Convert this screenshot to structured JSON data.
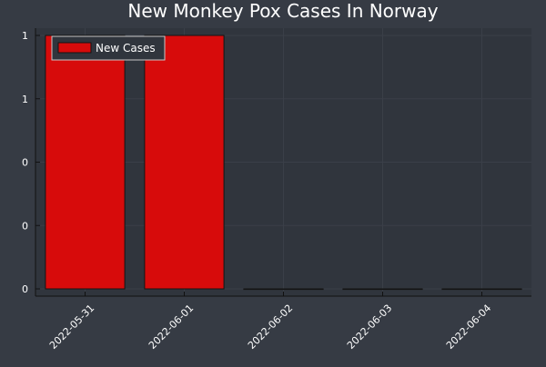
{
  "colors": {
    "background": "#363b44",
    "plot_area": "#30353d",
    "bar_fill": "#d70b0b",
    "bar_stroke": "#141414",
    "axis": "#111111",
    "text": "#ffffff",
    "grid": "#3a3f48",
    "legend_bg": "#30353d",
    "legend_border": "#c8c8c8"
  },
  "chart_data": {
    "type": "bar",
    "title": "New Monkey Pox Cases In Norway",
    "xlabel": "",
    "ylabel": "",
    "categories": [
      "2022-05-31",
      "2022-06-01",
      "2022-06-02",
      "2022-06-03",
      "2022-06-04"
    ],
    "series": [
      {
        "name": "New Cases",
        "values": [
          1,
          1,
          0,
          0,
          0
        ]
      }
    ],
    "ylim": [
      0,
      1
    ],
    "y_ticks": [
      0,
      0.25,
      0.5,
      0.75,
      1
    ],
    "y_tick_labels": [
      "0",
      "0",
      "0",
      "1",
      "1"
    ],
    "grid": true,
    "legend_position": "top-left"
  }
}
